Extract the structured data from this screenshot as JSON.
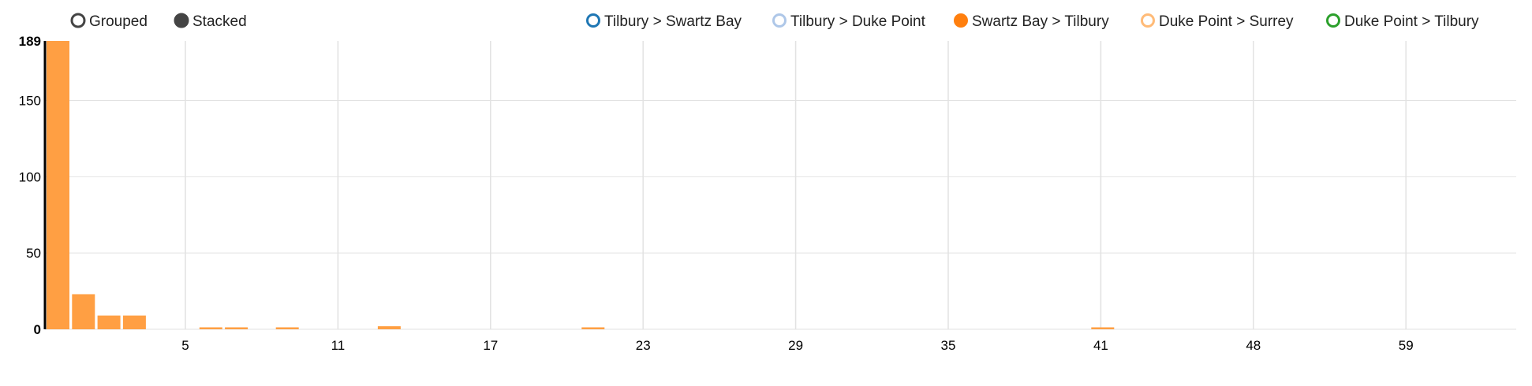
{
  "controls": [
    {
      "label": "Grouped",
      "selected": false
    },
    {
      "label": "Stacked",
      "selected": true
    }
  ],
  "chart_data": {
    "type": "bar",
    "mode": "stacked",
    "x_tick_labels": [
      "5",
      "11",
      "17",
      "23",
      "29",
      "35",
      "41",
      "48",
      "59"
    ],
    "y_ticks": [
      0,
      50,
      100,
      150
    ],
    "ylim": [
      0,
      189
    ],
    "grid": true,
    "legend_position": "top-right",
    "series": [
      {
        "name": "Tilbury > Swartz Bay",
        "color": "#1f77b4",
        "enabled": false,
        "values": []
      },
      {
        "name": "Tilbury > Duke Point",
        "color": "#aec7e8",
        "enabled": false,
        "values": []
      },
      {
        "name": "Swartz Bay > Tilbury",
        "color": "#ff7f0e",
        "enabled": true,
        "values": [
          189,
          23,
          9,
          9,
          0,
          0,
          1,
          1,
          0,
          1,
          0,
          0,
          0,
          2,
          0,
          0,
          0,
          0,
          0,
          0,
          0,
          1,
          0,
          0,
          0,
          0,
          0,
          0,
          0,
          0,
          0,
          0,
          0,
          0,
          0,
          0,
          0,
          0,
          0,
          0,
          0,
          1
        ]
      },
      {
        "name": "Duke Point > Surrey",
        "color": "#ffbb78",
        "enabled": false,
        "values": []
      },
      {
        "name": "Duke Point > Tilbury",
        "color": "#2ca02c",
        "enabled": false,
        "values": []
      }
    ]
  }
}
